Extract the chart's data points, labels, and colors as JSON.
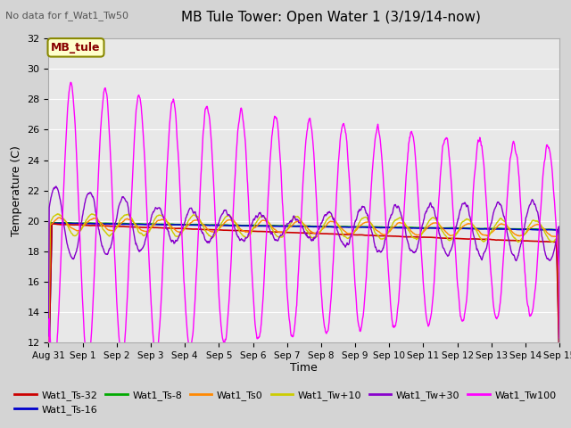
{
  "title": "MB Tule Tower: Open Water 1 (3/19/14-now)",
  "subtitle": "No data for f_Wat1_Tw50",
  "xlabel": "Time",
  "ylabel": "Temperature (C)",
  "ylim": [
    12,
    32
  ],
  "yticks": [
    12,
    14,
    16,
    18,
    20,
    22,
    24,
    26,
    28,
    30,
    32
  ],
  "xlim_days": [
    0,
    15.0
  ],
  "xtick_labels": [
    "Aug 31",
    "Sep 1",
    "Sep 2",
    "Sep 3",
    "Sep 4",
    "Sep 5",
    "Sep 6",
    "Sep 7",
    "Sep 8",
    "Sep 9",
    "Sep 10",
    "Sep 11",
    "Sep 12",
    "Sep 13",
    "Sep 14",
    "Sep 15"
  ],
  "fig_bg": "#d4d4d4",
  "plot_bg": "#e8e8e8",
  "grid_color": "#c8c8c8",
  "annotation_label": "MB_tule",
  "annotation_box_color": "#ffffcc",
  "annotation_text_color": "#880000",
  "annotation_edge_color": "#888800",
  "colors": {
    "ts32": "#cc0000",
    "ts16": "#0000cc",
    "ts8": "#00aa00",
    "ts0": "#ff8800",
    "tw10": "#cccc00",
    "tw30": "#8800cc",
    "tw100": "#ff00ff"
  }
}
